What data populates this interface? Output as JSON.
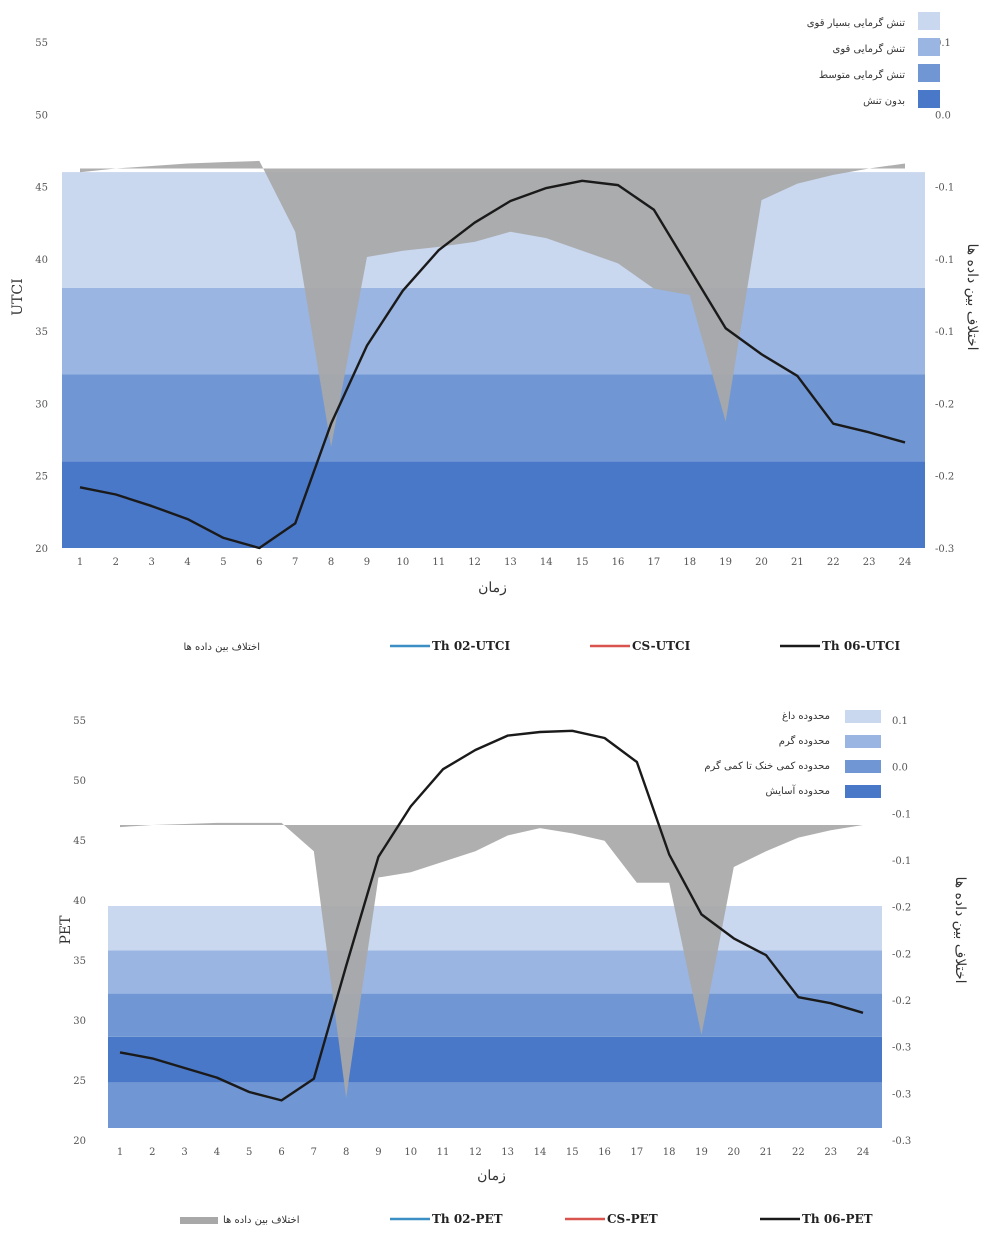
{
  "chart_data": [
    {
      "type": "line",
      "x": [
        1,
        2,
        3,
        4,
        5,
        6,
        7,
        8,
        9,
        10,
        11,
        12,
        13,
        14,
        15,
        16,
        17,
        18,
        19,
        20,
        21,
        22,
        23,
        24
      ],
      "xlabel": "زمان",
      "ylabel": "UTCI",
      "y2label": "اختلاف بین داده ها",
      "ylim": [
        20,
        55
      ],
      "y_ticks": [
        "20",
        "25",
        "30",
        "35",
        "40",
        "45",
        "50",
        "55"
      ],
      "y2_ticks": [
        "-0.3",
        "-0.2",
        "-0.2",
        "-0.1",
        "-0.1",
        "-0.1",
        "0.0",
        "0.1"
      ],
      "y2lim": [
        -0.3,
        0.1
      ],
      "bands": [
        {
          "label": "بدون تنش",
          "from": 20,
          "to": 26,
          "color": "#4a78c8"
        },
        {
          "label": "تنش گرمایی متوسط",
          "from": 26,
          "to": 32,
          "color": "#7097d4"
        },
        {
          "label": "تنش گرمایی قوی",
          "from": 32,
          "to": 38,
          "color": "#9ab5e1"
        },
        {
          "label": "تنش گرمایی بسیار قوی",
          "from": 38,
          "to": 46,
          "color": "#c9d7ef"
        }
      ],
      "series": [
        {
          "name": "Th 06-UTCI",
          "color": "#1a1a1a",
          "values": [
            24.2,
            23.7,
            22.9,
            22.0,
            20.7,
            20.0,
            21.7,
            28.6,
            34.0,
            37.8,
            40.6,
            42.5,
            44.0,
            44.9,
            45.4,
            45.1,
            43.4,
            39.3,
            35.2,
            33.4,
            31.9,
            28.6,
            28.0,
            27.3
          ]
        },
        {
          "name": "CS-UTCI",
          "color": "#d9534f",
          "values": [
            24.2,
            23.7,
            22.9,
            22.0,
            20.7,
            20.0,
            21.7,
            28.6,
            34.0,
            37.8,
            40.6,
            42.5,
            44.0,
            44.9,
            45.4,
            45.1,
            43.4,
            39.3,
            35.2,
            33.4,
            31.9,
            28.6,
            28.0,
            27.3
          ]
        },
        {
          "name": "Th 02-UTCI",
          "color": "#3b8fc4",
          "values": [
            24.2,
            23.7,
            22.9,
            22.0,
            20.7,
            20.0,
            21.7,
            28.6,
            34.0,
            37.8,
            40.6,
            42.5,
            44.0,
            44.9,
            45.4,
            45.1,
            43.4,
            39.3,
            35.2,
            33.4,
            31.9,
            28.6,
            28.0,
            27.3
          ]
        }
      ],
      "diff": {
        "name": "اختلاف بین داده ها",
        "color": "#a8a8a8",
        "values": [
          -0.003,
          0.0,
          0.002,
          0.004,
          0.005,
          0.006,
          -0.05,
          -0.22,
          -0.07,
          -0.065,
          -0.062,
          -0.058,
          -0.05,
          -0.055,
          -0.065,
          -0.075,
          -0.095,
          -0.1,
          -0.2,
          -0.025,
          -0.012,
          -0.005,
          0.0,
          0.004
        ]
      },
      "legend": [
        {
          "label": "اختلاف بین داده ها",
          "color": "#a8a8a8"
        },
        {
          "label": "Th 02-UTCI",
          "color": "#3b8fc4"
        },
        {
          "label": "CS-UTCI",
          "color": "#d9534f"
        },
        {
          "label": "Th 06-UTCI",
          "color": "#1a1a1a"
        }
      ]
    },
    {
      "type": "line",
      "x": [
        1,
        2,
        3,
        4,
        5,
        6,
        7,
        8,
        9,
        10,
        11,
        12,
        13,
        14,
        15,
        16,
        17,
        18,
        19,
        20,
        21,
        22,
        23,
        24
      ],
      "xlabel": "زمان",
      "ylabel": "PET",
      "y2label": "اختلاف بین داده ها",
      "ylim": [
        20,
        55
      ],
      "y_ticks": [
        "20",
        "25",
        "30",
        "35",
        "40",
        "45",
        "50",
        "55"
      ],
      "y2_ticks": [
        "-0.3",
        "-0.3",
        "-0.3",
        "-0.2",
        "-0.2",
        "-0.2",
        "-0.1",
        "-0.1",
        "0.0",
        "0.1"
      ],
      "y2lim": [
        -0.3,
        0.1
      ],
      "bands": [
        {
          "label": "",
          "from": 21,
          "to": 24.8,
          "color": "#7097d4"
        },
        {
          "label": "محدوده آسایش",
          "from": 24.8,
          "to": 28.6,
          "color": "#4a78c8"
        },
        {
          "label": "محدوده کمی خنک تا کمی گرم",
          "from": 28.6,
          "to": 32.2,
          "color": "#7097d4"
        },
        {
          "label": "محدوده گرم",
          "from": 32.2,
          "to": 35.8,
          "color": "#9ab5e1"
        },
        {
          "label": "محدوده داغ",
          "from": 35.8,
          "to": 39.5,
          "color": "#c9d7ef"
        }
      ],
      "series": [
        {
          "name": "Th 06-PET",
          "color": "#1a1a1a",
          "values": [
            27.3,
            26.8,
            26.0,
            25.2,
            24.0,
            23.3,
            25.1,
            34.5,
            43.6,
            47.8,
            50.9,
            52.5,
            53.7,
            54.0,
            54.1,
            53.5,
            51.5,
            43.8,
            38.8,
            36.8,
            35.4,
            31.9,
            31.4,
            30.6
          ]
        },
        {
          "name": "CS-PET",
          "color": "#d9534f",
          "values": [
            27.3,
            26.8,
            26.0,
            25.2,
            24.0,
            23.3,
            25.1,
            34.5,
            43.6,
            47.8,
            50.9,
            52.5,
            53.7,
            54.0,
            54.1,
            53.5,
            51.5,
            43.8,
            38.8,
            36.8,
            35.4,
            31.9,
            31.4,
            30.6
          ]
        },
        {
          "name": "Th 02-PET",
          "color": "#3b8fc4",
          "values": [
            27.3,
            26.8,
            26.0,
            25.2,
            24.0,
            23.3,
            25.1,
            34.5,
            43.6,
            47.8,
            50.9,
            52.5,
            53.7,
            54.0,
            54.1,
            53.5,
            51.5,
            43.8,
            38.8,
            36.8,
            35.4,
            31.9,
            31.4,
            30.6
          ]
        }
      ],
      "diff": {
        "name": "اختلاف بین داده ها",
        "color": "#a8a8a8",
        "values": [
          -0.002,
          0.0,
          0.001,
          0.002,
          0.002,
          0.002,
          -0.025,
          -0.26,
          -0.05,
          -0.045,
          -0.035,
          -0.025,
          -0.01,
          -0.003,
          -0.008,
          -0.015,
          -0.055,
          -0.055,
          -0.2,
          -0.04,
          -0.025,
          -0.012,
          -0.005,
          0.0
        ]
      },
      "legend": [
        {
          "label": "اختلاف بین داده ها",
          "color": "#a8a8a8"
        },
        {
          "label": "Th 02-PET",
          "color": "#3b8fc4"
        },
        {
          "label": "CS-PET",
          "color": "#d9534f"
        },
        {
          "label": "Th 06-PET",
          "color": "#1a1a1a"
        }
      ]
    }
  ]
}
